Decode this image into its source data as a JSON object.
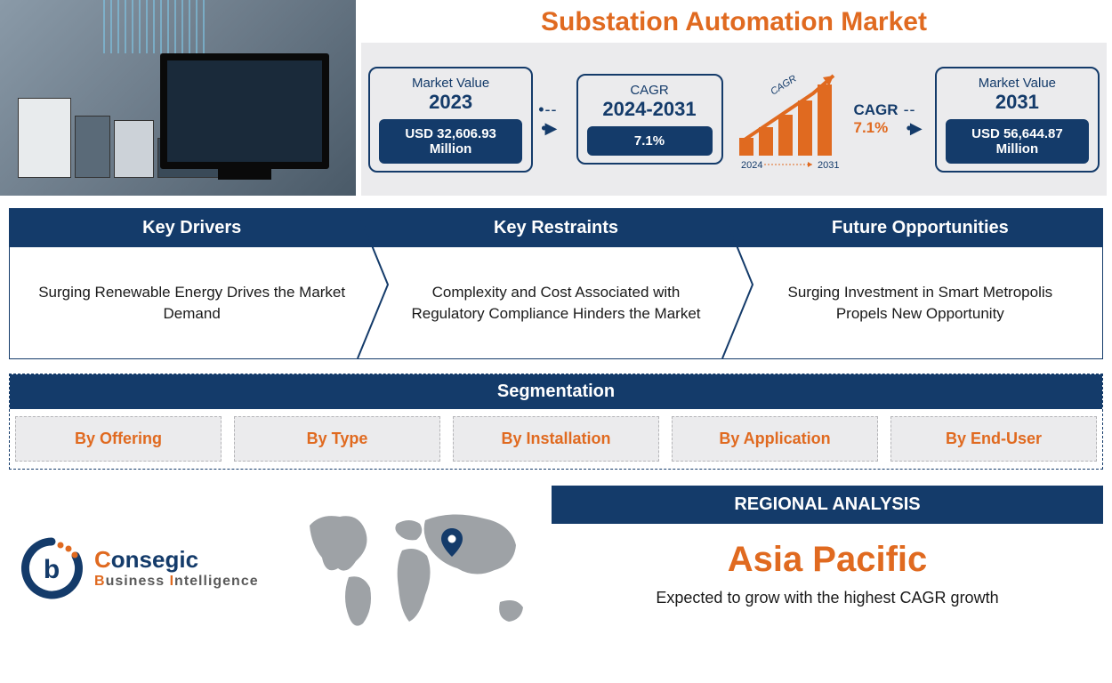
{
  "colors": {
    "navy": "#143b6a",
    "orange": "#e06a20",
    "lightgray": "#ebebed",
    "mapgray": "#9ea2a6",
    "text": "#1a1a1a"
  },
  "title": "Substation Automation Market",
  "stats": {
    "box1": {
      "label": "Market Value",
      "year": "2023",
      "badge": "USD 32,606.93 Million"
    },
    "box2": {
      "label": "CAGR",
      "year": "2024-2031",
      "badge": "7.1%"
    },
    "box3": {
      "label": "Market Value",
      "year": "2031",
      "badge": "USD 56,644.87 Million"
    },
    "cagr_graphic": {
      "label": "CAGR",
      "value": "7.1%",
      "bars": [
        20,
        32,
        46,
        62,
        80
      ],
      "year_start": "2024",
      "year_end": "2031",
      "bar_color": "#e06a20"
    }
  },
  "cards": [
    {
      "header": "Key Drivers",
      "body": "Surging Renewable Energy Drives the Market Demand"
    },
    {
      "header": "Key Restraints",
      "body": "Complexity and Cost Associated with Regulatory Compliance Hinders the Market"
    },
    {
      "header": "Future Opportunities",
      "body": "Surging Investment in Smart Metropolis Propels New Opportunity"
    }
  ],
  "segmentation": {
    "header": "Segmentation",
    "items": [
      "By Offering",
      "By Type",
      "By Installation",
      "By Application",
      "By End-User"
    ]
  },
  "logo": {
    "line1_a": "C",
    "line1_b": "onsegic",
    "line2_a": "B",
    "line2_b": "usiness ",
    "line2_c": "I",
    "line2_d": "ntelligence"
  },
  "regional": {
    "header": "REGIONAL ANALYSIS",
    "title": "Asia Pacific",
    "subtitle": "Expected to grow with the highest CAGR growth"
  }
}
